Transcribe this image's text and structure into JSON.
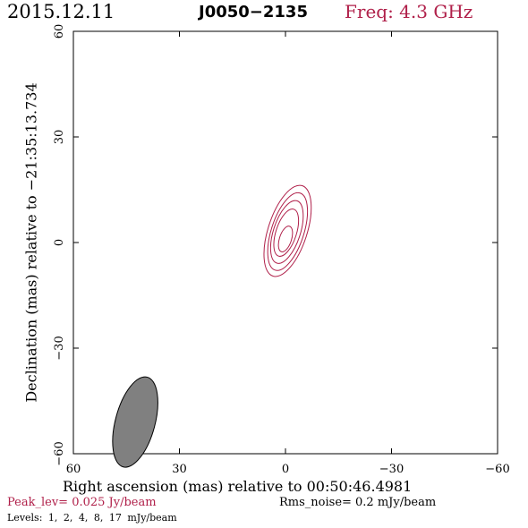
{
  "header": {
    "date": "2015.12.11",
    "source": "J0050−2135",
    "frequency": "Freq:  4.3 GHz"
  },
  "chart_data": {
    "type": "contour",
    "xlabel": "Right ascension (mas) relative to 00:50:46.4981",
    "ylabel": "Declination (mas) relative to −21:35:13.734",
    "xlim": [
      60,
      -60
    ],
    "ylim": [
      -60,
      60
    ],
    "xticks": [
      60,
      30,
      0,
      -30,
      -60
    ],
    "yticks": [
      -60,
      -30,
      0,
      30,
      60
    ],
    "x_tick_labels": [
      "60",
      "30",
      "0",
      "−30",
      "−60"
    ],
    "y_tick_labels": [
      "−60",
      "−30",
      "0",
      "30",
      "60"
    ],
    "peak_level_jy_per_beam": 0.025,
    "rms_noise_mjy_per_beam": 0.2,
    "contour_levels_mjy_per_beam": [
      1,
      2,
      4,
      8,
      17
    ],
    "contours": [
      {
        "level": 1,
        "center": [
          -0.6,
          3.3
        ],
        "semi_major": 13.5,
        "semi_minor": 5.5,
        "pa_deg": 18
      },
      {
        "level": 2,
        "center": [
          -0.6,
          3.1
        ],
        "semi_major": 11.5,
        "semi_minor": 4.6,
        "pa_deg": 18
      },
      {
        "level": 4,
        "center": [
          -0.4,
          3.0
        ],
        "semi_major": 9.3,
        "semi_minor": 3.8,
        "pa_deg": 18
      },
      {
        "level": 8,
        "center": [
          -0.2,
          2.8
        ],
        "semi_major": 7.0,
        "semi_minor": 2.9,
        "pa_deg": 18
      },
      {
        "level": 17,
        "center": [
          0.0,
          1.0
        ],
        "semi_major": 3.8,
        "semi_minor": 1.7,
        "pa_deg": 18
      }
    ],
    "beam": {
      "center": [
        42.5,
        -51.0
      ],
      "major": 13.2,
      "minor": 5.6,
      "pa_deg": 15
    },
    "colors": {
      "contour": "#b0204a",
      "beam_fill": "#808080",
      "axes": "#000000"
    }
  },
  "footer": {
    "peak": "Peak_lev=  0.025 Jy/beam",
    "rms": "Rms_noise=  0.2 mJy/beam",
    "levels": "Levels:  1,  2,  4,  8,  17 mJy/beam"
  }
}
